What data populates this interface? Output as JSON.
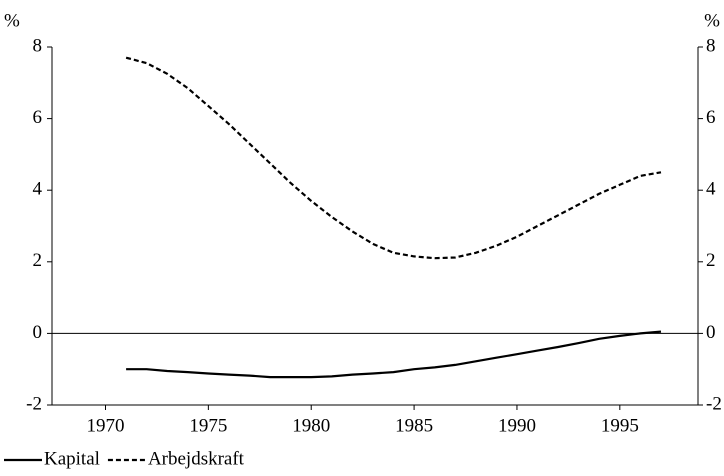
{
  "chart_data": {
    "type": "line",
    "y_unit": "%",
    "y2_unit": "%",
    "x": [
      1971,
      1972,
      1973,
      1974,
      1975,
      1976,
      1977,
      1978,
      1979,
      1980,
      1981,
      1982,
      1983,
      1984,
      1985,
      1986,
      1987,
      1988,
      1989,
      1990,
      1991,
      1992,
      1993,
      1994,
      1995,
      1996,
      1997
    ],
    "series": [
      {
        "name": "Kapital",
        "color": "#000000",
        "dash": "solid",
        "values": [
          -1.0,
          -1.0,
          -1.05,
          -1.08,
          -1.12,
          -1.15,
          -1.18,
          -1.22,
          -1.22,
          -1.22,
          -1.2,
          -1.15,
          -1.12,
          -1.08,
          -1.0,
          -0.95,
          -0.88,
          -0.78,
          -0.68,
          -0.58,
          -0.48,
          -0.38,
          -0.27,
          -0.15,
          -0.07,
          0.0,
          0.05
        ]
      },
      {
        "name": "Arbejdskraft",
        "color": "#000000",
        "dash": "dashed",
        "values": [
          7.7,
          7.55,
          7.25,
          6.85,
          6.35,
          5.85,
          5.3,
          4.75,
          4.2,
          3.7,
          3.25,
          2.85,
          2.5,
          2.25,
          2.15,
          2.1,
          2.12,
          2.25,
          2.45,
          2.7,
          3.0,
          3.3,
          3.6,
          3.9,
          4.15,
          4.4,
          4.5
        ]
      }
    ],
    "xlim": [
      1967.4,
      1998.8
    ],
    "xticks": [
      1970,
      1975,
      1980,
      1985,
      1990,
      1995
    ],
    "ylim": [
      -2,
      8
    ],
    "yticks": [
      -2,
      0,
      2,
      4,
      6,
      8
    ],
    "y2lim": [
      -2,
      8
    ],
    "y2ticks": [
      -2,
      0,
      2,
      4,
      6,
      8
    ],
    "zero_line": true,
    "legend": "bottom"
  }
}
